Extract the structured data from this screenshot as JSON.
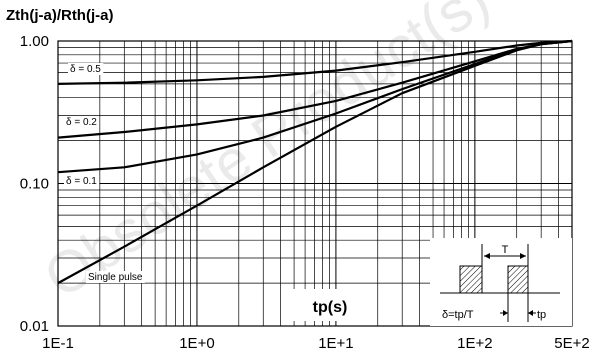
{
  "chart_data": {
    "type": "line",
    "title": "Zth(j-a)/Rth(j-a)",
    "xlabel": "tp(s)",
    "ylabel": "",
    "x_scale": "log",
    "y_scale": "log",
    "xlim": [
      0.1,
      500
    ],
    "ylim": [
      0.01,
      1.0
    ],
    "grid": true,
    "x_ticks": [
      "1E-1",
      "1E+0",
      "1E+1",
      "1E+2",
      "5E+2"
    ],
    "x_tick_values": [
      0.1,
      1,
      10,
      100,
      500
    ],
    "y_ticks": [
      "0.01",
      "0.10",
      "1.00"
    ],
    "y_tick_values": [
      0.01,
      0.1,
      1.0
    ],
    "series": [
      {
        "name": "δ = 0.5",
        "x": [
          0.1,
          0.3,
          1,
          3,
          10,
          30,
          100,
          200,
          300,
          500
        ],
        "y": [
          0.5,
          0.51,
          0.53,
          0.56,
          0.62,
          0.71,
          0.84,
          0.93,
          0.97,
          1.0
        ]
      },
      {
        "name": "δ = 0.2",
        "x": [
          0.1,
          0.3,
          1,
          3,
          10,
          30,
          100,
          200,
          300,
          500
        ],
        "y": [
          0.21,
          0.23,
          0.26,
          0.3,
          0.38,
          0.51,
          0.72,
          0.88,
          0.95,
          1.0
        ]
      },
      {
        "name": "δ = 0.1",
        "x": [
          0.1,
          0.3,
          1,
          3,
          10,
          30,
          100,
          200,
          300,
          500
        ],
        "y": [
          0.12,
          0.13,
          0.16,
          0.21,
          0.31,
          0.46,
          0.69,
          0.87,
          0.95,
          1.0
        ]
      },
      {
        "name": "Single pulse",
        "x": [
          0.1,
          0.3,
          1,
          3,
          10,
          30,
          100,
          200,
          300,
          500
        ],
        "y": [
          0.02,
          0.036,
          0.07,
          0.13,
          0.25,
          0.43,
          0.67,
          0.86,
          0.95,
          1.0
        ]
      }
    ],
    "inset": {
      "T": "T",
      "delta": "δ=tp/T",
      "tp": "tp"
    }
  },
  "watermark": "Obsolete Product(s)"
}
